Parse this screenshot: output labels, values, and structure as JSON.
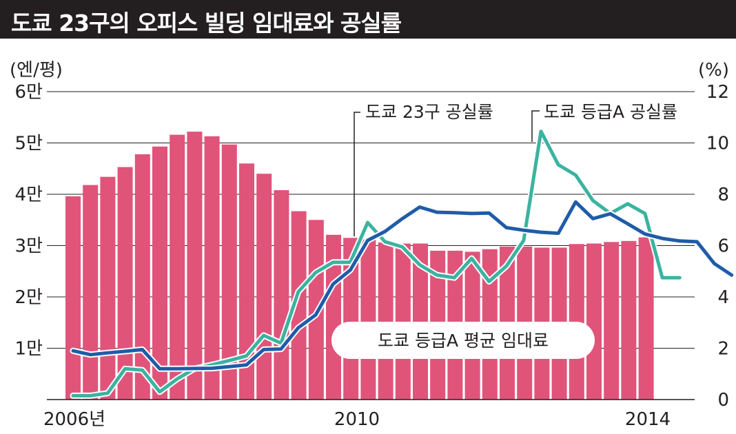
{
  "title": "도쿄 23구의 오피스 빌딩 임대료와 공실률",
  "chart_data": {
    "type": "bar",
    "left_axis": {
      "unit": "(엔/평)",
      "ticks": [
        "1만",
        "2만",
        "3만",
        "4만",
        "5만",
        "6만"
      ],
      "tick_values": [
        10000,
        20000,
        30000,
        40000,
        50000,
        60000
      ],
      "ylim": [
        0,
        60000
      ]
    },
    "right_axis": {
      "unit": "(%)",
      "ticks": [
        "0",
        "2",
        "4",
        "6",
        "8",
        "10",
        "12"
      ],
      "tick_values": [
        0,
        2,
        4,
        6,
        8,
        10,
        12
      ],
      "ylim": [
        0,
        12
      ]
    },
    "x_ticks": [
      "2006년",
      "2010",
      "2014"
    ],
    "grid": true,
    "series": [
      {
        "name": "도쿄 등급A 평균 임대료",
        "type": "bar",
        "axis": "left",
        "color": "#e0547a",
        "values": [
          39600,
          41800,
          43400,
          45300,
          47800,
          49300,
          51600,
          52200,
          51300,
          49700,
          46000,
          44000,
          40800,
          36700,
          35000,
          32100,
          31500,
          31200,
          30600,
          30400,
          30400,
          29000,
          29000,
          28800,
          29300,
          29800,
          29800,
          29600,
          29600,
          30300,
          30400,
          30700,
          30900,
          31600
        ]
      },
      {
        "name": "도쿄 23구 공실률",
        "type": "line",
        "axis": "right",
        "color": "#1f5ca8",
        "values": [
          1.9,
          1.75,
          1.82,
          1.88,
          1.95,
          1.2,
          1.2,
          1.21,
          1.22,
          1.28,
          1.35,
          1.95,
          1.97,
          2.8,
          3.3,
          4.5,
          5.05,
          6.2,
          6.55,
          7.05,
          7.5,
          7.3,
          7.28,
          7.25,
          7.27,
          6.7,
          6.6,
          6.52,
          6.48,
          7.7,
          7.05,
          7.24,
          6.85,
          6.45,
          6.28,
          6.18,
          6.15,
          5.3,
          4.85
        ]
      },
      {
        "name": "도쿄 등급A 공실률",
        "type": "line",
        "axis": "right",
        "color": "#3bb3a0",
        "values": [
          0.15,
          0.15,
          0.25,
          1.2,
          1.15,
          0.3,
          0.8,
          1.2,
          1.35,
          1.52,
          1.7,
          2.5,
          2.2,
          4.2,
          4.95,
          5.35,
          5.35,
          6.9,
          6.15,
          5.95,
          5.25,
          4.85,
          4.75,
          5.5,
          4.6,
          5.2,
          6.2,
          10.45,
          9.15,
          8.75,
          7.75,
          7.25,
          7.63,
          7.25,
          4.75,
          4.75
        ]
      }
    ]
  }
}
